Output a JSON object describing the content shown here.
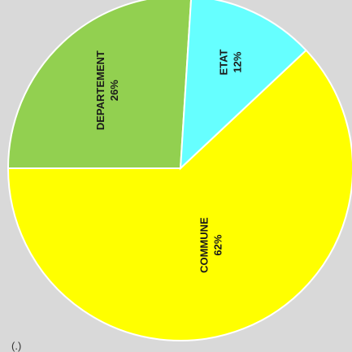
{
  "chart_data": {
    "type": "pie",
    "title": "",
    "slices": [
      {
        "label": "COMMUNE",
        "percent_label": "62%",
        "value": 62,
        "color": "#ffff00"
      },
      {
        "label": "DEPARTEMENT",
        "percent_label": "26%",
        "value": 26,
        "color": "#92d050"
      },
      {
        "label": "ETAT",
        "percent_label": "12%",
        "value": 12,
        "color": "#66ffff"
      }
    ],
    "legend": "none",
    "labels": "inside slices, rotated 90° counter-clockwise"
  },
  "corner_mark": "(.)"
}
